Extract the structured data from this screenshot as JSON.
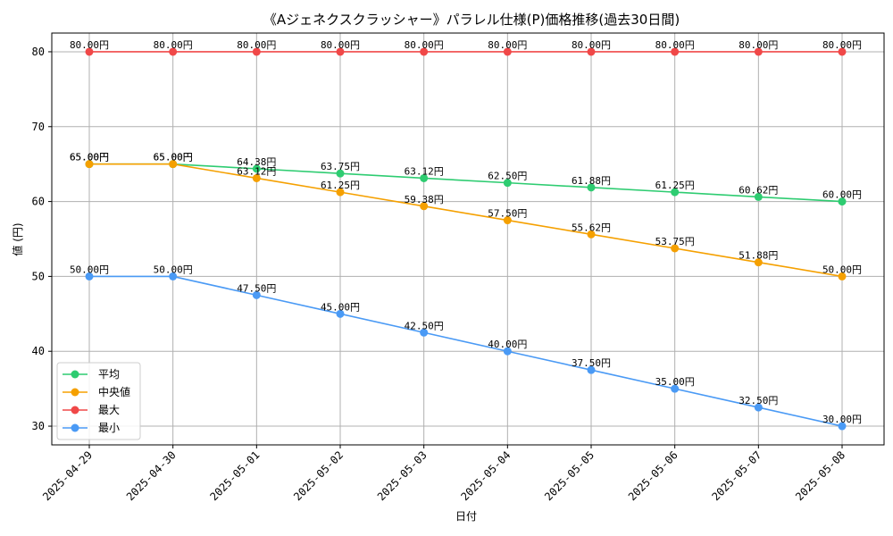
{
  "chart_data": {
    "type": "line",
    "title": "《Aジェネクスクラッシャー》パラレル仕様(P)価格推移(過去30日間)",
    "xlabel": "日付",
    "ylabel": "値 (円)",
    "ylim": [
      27.5,
      82.5
    ],
    "yticks": [
      30,
      40,
      50,
      60,
      70,
      80
    ],
    "grid": true,
    "legend_position": "lower-left",
    "value_suffix": "円",
    "x": [
      "2025-04-29",
      "2025-04-30",
      "2025-05-01",
      "2025-05-02",
      "2025-05-03",
      "2025-05-04",
      "2025-05-05",
      "2025-05-06",
      "2025-05-07",
      "2025-05-08"
    ],
    "series": [
      {
        "name": "平均",
        "color": "#2ecc71",
        "values": [
          65.0,
          65.0,
          64.38,
          63.75,
          63.12,
          62.5,
          61.88,
          61.25,
          60.62,
          60.0
        ]
      },
      {
        "name": "中央値",
        "color": "#f5a000",
        "values": [
          65.0,
          65.0,
          63.12,
          61.25,
          59.38,
          57.5,
          55.62,
          53.75,
          51.88,
          50.0
        ]
      },
      {
        "name": "最大",
        "color": "#f04848",
        "values": [
          80.0,
          80.0,
          80.0,
          80.0,
          80.0,
          80.0,
          80.0,
          80.0,
          80.0,
          80.0
        ]
      },
      {
        "name": "最小",
        "color": "#4a9af5",
        "values": [
          50.0,
          50.0,
          47.5,
          45.0,
          42.5,
          40.0,
          37.5,
          35.0,
          32.5,
          30.0
        ]
      }
    ]
  }
}
